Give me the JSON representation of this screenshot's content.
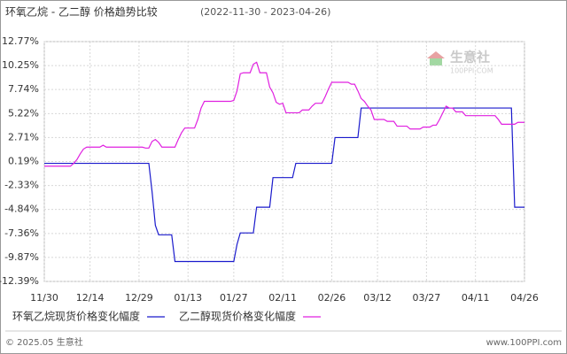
{
  "chart_data": {
    "type": "line",
    "title": "环氧乙烷 - 乙二醇 价格趋势比较",
    "subtitle": "(2022-11-30 - 2023-04-26)",
    "categories": [
      "11/30",
      null,
      null,
      null,
      null,
      null,
      null,
      null,
      null,
      null,
      null,
      null,
      null,
      null,
      "12/14",
      null,
      null,
      null,
      null,
      null,
      null,
      null,
      null,
      null,
      null,
      null,
      null,
      null,
      null,
      "12/29",
      null,
      null,
      null,
      null,
      null,
      null,
      null,
      null,
      null,
      null,
      null,
      null,
      null,
      null,
      "01/13",
      null,
      null,
      null,
      null,
      null,
      null,
      null,
      null,
      null,
      null,
      null,
      null,
      null,
      "01/27",
      null,
      null,
      null,
      null,
      null,
      null,
      null,
      null,
      null,
      null,
      null,
      null,
      null,
      null,
      "02/11",
      null,
      null,
      null,
      null,
      null,
      null,
      null,
      null,
      null,
      null,
      null,
      null,
      null,
      null,
      "02/26",
      null,
      null,
      null,
      null,
      null,
      null,
      null,
      null,
      null,
      null,
      null,
      null,
      null,
      "03/12",
      null,
      null,
      null,
      null,
      null,
      null,
      null,
      null,
      null,
      null,
      null,
      null,
      null,
      null,
      "03/27",
      null,
      null,
      null,
      null,
      null,
      null,
      null,
      null,
      null,
      null,
      null,
      null,
      null,
      null,
      "04/11",
      null,
      null,
      null,
      null,
      null,
      null,
      null,
      null,
      null,
      null,
      null,
      null,
      null,
      null,
      "04/26"
    ],
    "series": [
      {
        "name": "环氧乙烷现货价格变化幅度",
        "color": "#1a1acc",
        "values": [
          0,
          0,
          0,
          0,
          0,
          0,
          0,
          0,
          0,
          0,
          0,
          0,
          0,
          0,
          0,
          0,
          0,
          0,
          0,
          0,
          0,
          0,
          0,
          0,
          0,
          0,
          0,
          0,
          0,
          0,
          0,
          0,
          0,
          -3,
          -6.5,
          -7.5,
          -7.5,
          -7.5,
          -7.5,
          -7.5,
          -10.3,
          -10.3,
          -10.3,
          -10.3,
          -10.3,
          -10.3,
          -10.3,
          -10.3,
          -10.3,
          -10.3,
          -10.3,
          -10.3,
          -10.3,
          -10.3,
          -10.3,
          -10.3,
          -10.3,
          -10.3,
          -10.3,
          -8.5,
          -7.3,
          -7.3,
          -7.3,
          -7.3,
          -7.3,
          -4.6,
          -4.6,
          -4.6,
          -4.6,
          -4.6,
          -1.5,
          -1.5,
          -1.5,
          -1.5,
          -1.5,
          -1.5,
          -1.5,
          0,
          0,
          0,
          0,
          0,
          0,
          0,
          0,
          0,
          0,
          0,
          0,
          2.7,
          2.7,
          2.7,
          2.7,
          2.7,
          2.7,
          2.7,
          2.7,
          5.8,
          5.8,
          5.8,
          5.8,
          5.8,
          5.8,
          5.8,
          5.8,
          5.8,
          5.8,
          5.8,
          5.8,
          5.8,
          5.8,
          5.8,
          5.8,
          5.8,
          5.8,
          5.8,
          5.8,
          5.8,
          5.8,
          5.8,
          5.8,
          5.8,
          5.8,
          5.8,
          5.8,
          5.8,
          5.8,
          5.8,
          5.8,
          5.8,
          5.8,
          5.8,
          5.8,
          5.8,
          5.8,
          5.8,
          5.8,
          5.8,
          5.8,
          5.8,
          5.8,
          5.8,
          5.8,
          5.8,
          -4.6,
          -4.6,
          -4.6,
          -4.6
        ]
      },
      {
        "name": "乙二醇现货价格变化幅度",
        "color": "#e020e0",
        "values": [
          -0.3,
          -0.3,
          -0.3,
          -0.3,
          -0.3,
          -0.3,
          -0.3,
          -0.3,
          -0.3,
          0,
          0.4,
          1.0,
          1.5,
          1.7,
          1.7,
          1.7,
          1.7,
          1.7,
          1.9,
          1.7,
          1.7,
          1.7,
          1.7,
          1.7,
          1.7,
          1.7,
          1.7,
          1.7,
          1.7,
          1.7,
          1.7,
          1.6,
          1.6,
          2.3,
          2.5,
          2.2,
          1.7,
          1.7,
          1.7,
          1.7,
          1.7,
          2.5,
          3.2,
          3.7,
          3.7,
          3.7,
          3.7,
          4.6,
          5.8,
          6.5,
          6.5,
          6.5,
          6.5,
          6.5,
          6.5,
          6.5,
          6.5,
          6.5,
          6.6,
          7.6,
          9.4,
          9.5,
          9.5,
          9.5,
          10.4,
          10.6,
          9.5,
          9.5,
          9.5,
          8.0,
          7.4,
          6.4,
          6.2,
          6.3,
          5.3,
          5.3,
          5.3,
          5.3,
          5.3,
          5.6,
          5.6,
          5.6,
          6.0,
          6.3,
          6.3,
          6.3,
          7.0,
          7.8,
          8.5,
          8.5,
          8.5,
          8.5,
          8.5,
          8.5,
          8.3,
          8.3,
          7.6,
          6.8,
          6.5,
          6.0,
          5.6,
          4.6,
          4.6,
          4.6,
          4.6,
          4.4,
          4.4,
          4.4,
          3.9,
          3.9,
          3.9,
          3.9,
          3.6,
          3.6,
          3.6,
          3.6,
          3.8,
          3.8,
          3.8,
          4.0,
          4.0,
          4.6,
          5.3,
          6.0,
          5.8,
          5.8,
          5.4,
          5.4,
          5.4,
          5.0,
          5.0,
          5.0,
          5.0,
          5.0,
          5.0,
          5.0,
          5.0,
          5.0,
          5.0,
          4.6,
          4.1,
          4.1,
          4.1,
          4.1,
          4.1,
          4.3,
          4.3,
          4.3
        ]
      }
    ],
    "ylim": [
      -12.39,
      12.77
    ],
    "yticks": [
      {
        "value": 12.77,
        "label": "12.77%"
      },
      {
        "value": 10.25,
        "label": "10.25%"
      },
      {
        "value": 7.74,
        "label": "7.74%"
      },
      {
        "value": 5.22,
        "label": "5.22%"
      },
      {
        "value": 2.71,
        "label": "2.71%"
      },
      {
        "value": 0.19,
        "label": "0.19%"
      },
      {
        "value": -2.33,
        "label": "-2.33%"
      },
      {
        "value": -4.84,
        "label": "-4.84%"
      },
      {
        "value": -7.36,
        "label": "-7.36%"
      },
      {
        "value": -9.87,
        "label": "-9.87%"
      },
      {
        "value": -12.39,
        "label": "-12.39%"
      }
    ],
    "grid": true,
    "legend": "bottom",
    "watermark": {
      "text": "生意社",
      "sub": "100PPI.COM"
    },
    "footer": {
      "left": "© 2025.05 生意社",
      "right": "www.100PPI.com"
    }
  }
}
